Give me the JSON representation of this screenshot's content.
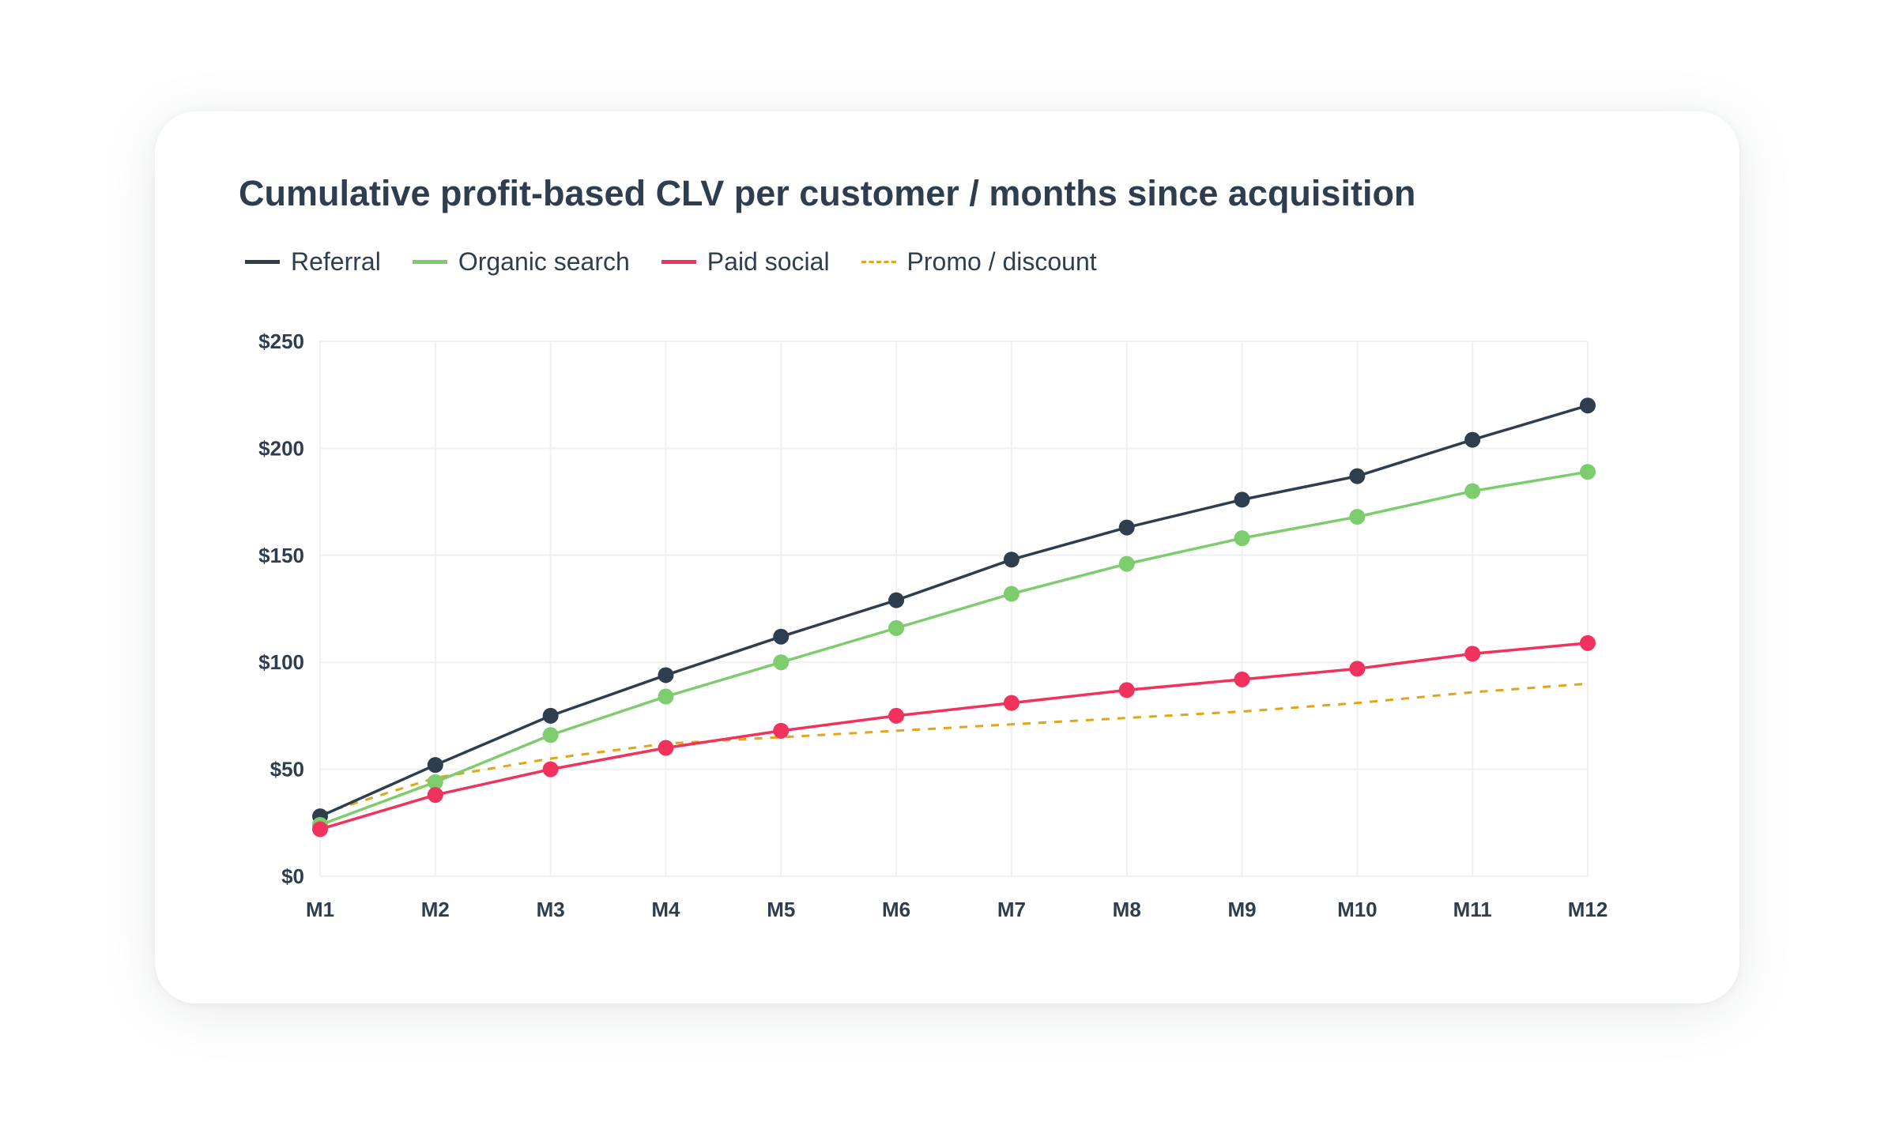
{
  "title": "Cumulative profit-based CLV per customer / months since acquisition",
  "chart_data": {
    "type": "line",
    "title": "Cumulative profit-based CLV per customer / months since acquisition",
    "xlabel": "",
    "ylabel": "",
    "categories": [
      "M1",
      "M2",
      "M3",
      "M4",
      "M5",
      "M6",
      "M7",
      "M8",
      "M9",
      "M10",
      "M11",
      "M12"
    ],
    "y_ticks": [
      "$0",
      "$50",
      "$100",
      "$150",
      "$200",
      "$250"
    ],
    "ylim": [
      0,
      250
    ],
    "grid": true,
    "legend_position": "top-left",
    "series": [
      {
        "name": "Referral",
        "color": "#2f3e4f",
        "style": "solid",
        "markers": true,
        "values": [
          28,
          52,
          75,
          94,
          112,
          129,
          148,
          163,
          176,
          187,
          204,
          220
        ]
      },
      {
        "name": "Organic search",
        "color": "#7dcc6e",
        "style": "solid",
        "markers": true,
        "values": [
          24,
          44,
          66,
          84,
          100,
          116,
          132,
          146,
          158,
          168,
          180,
          189
        ]
      },
      {
        "name": "Paid social",
        "color": "#f0325c",
        "style": "solid",
        "markers": true,
        "values": [
          22,
          38,
          50,
          60,
          68,
          75,
          81,
          87,
          92,
          97,
          104,
          109
        ]
      },
      {
        "name": "Promo / discount",
        "color": "#e3a415",
        "style": "dashed",
        "markers": false,
        "values": [
          29,
          46,
          55,
          62,
          65,
          68,
          71,
          74,
          77,
          81,
          86,
          90
        ]
      }
    ]
  }
}
